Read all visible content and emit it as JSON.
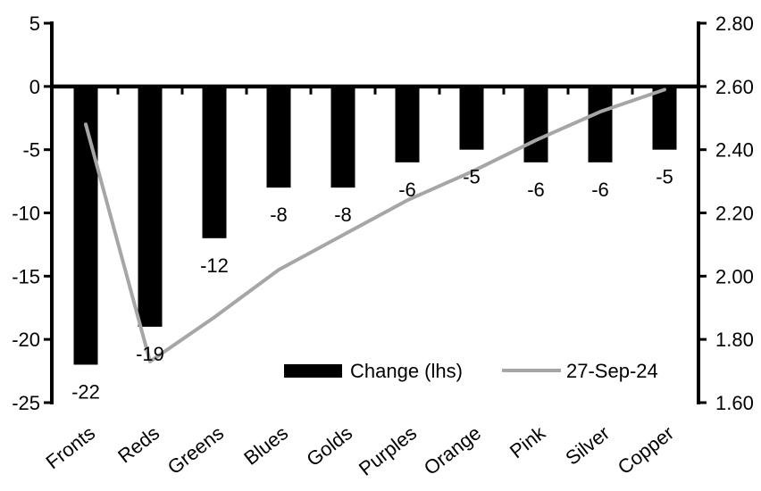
{
  "chart_data": {
    "type": "bar",
    "title": "",
    "xlabel": "",
    "ylabel_left": "",
    "ylabel_right": "",
    "categories": [
      "Fronts",
      "Reds",
      "Greens",
      "Blues",
      "Golds",
      "Purples",
      "Orange",
      "Pink",
      "Silver",
      "Copper"
    ],
    "series": [
      {
        "name": "Change (lhs)",
        "type": "bar",
        "axis": "left",
        "color": "#000000",
        "values": [
          -22,
          -19,
          -12,
          -8,
          -8,
          -6,
          -5,
          -6,
          -6,
          -5
        ],
        "data_labels": [
          "-22",
          "-19",
          "-12",
          "-8",
          "-8",
          "-6",
          "-5",
          "-6",
          "-6",
          "-5"
        ]
      },
      {
        "name": "27-Sep-24",
        "type": "line",
        "axis": "right",
        "color": "#a6a6a6",
        "values": [
          2.48,
          1.73,
          1.87,
          2.02,
          2.13,
          2.24,
          2.33,
          2.43,
          2.52,
          2.59
        ]
      }
    ],
    "left_axis": {
      "min": -25,
      "max": 5,
      "tick_step": 5,
      "tick_labels": [
        "5",
        "0",
        "-5",
        "-10",
        "-15",
        "-20",
        "-25"
      ],
      "tick_values": [
        5,
        0,
        -5,
        -10,
        -15,
        -20,
        -25
      ]
    },
    "right_axis": {
      "min": 1.6,
      "max": 2.8,
      "tick_step": 0.2,
      "tick_labels": [
        "2.80",
        "2.60",
        "2.40",
        "2.20",
        "2.00",
        "1.80",
        "1.60"
      ],
      "tick_values": [
        2.8,
        2.6,
        2.4,
        2.2,
        2.0,
        1.8,
        1.6
      ]
    },
    "legend": {
      "position": "bottom-inside",
      "entries": [
        "Change (lhs)",
        "27-Sep-24"
      ]
    },
    "grid": false,
    "colors": {
      "axis": "#000000",
      "text": "#000000",
      "bar": "#000000",
      "line": "#a6a6a6",
      "background": "#ffffff"
    }
  }
}
